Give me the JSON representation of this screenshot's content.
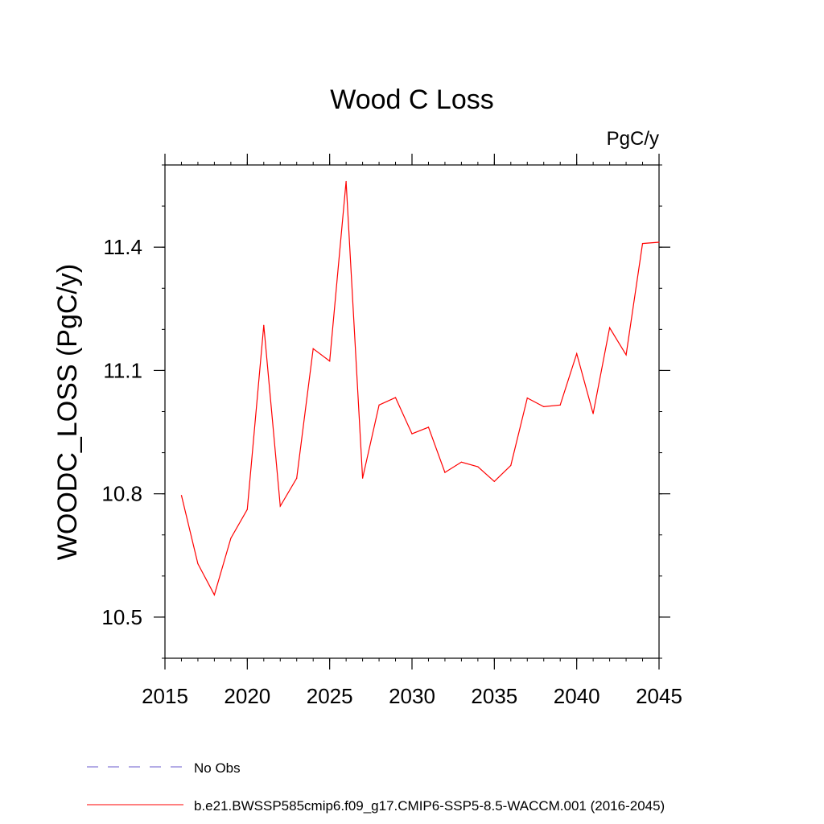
{
  "chart_data": {
    "type": "line",
    "title": "Wood C Loss",
    "units": "PgC/y",
    "xlabel": "",
    "ylabel": "WOODC_LOSS  (PgC/y)",
    "xlim": [
      2015,
      2045
    ],
    "ylim": [
      10.4,
      11.6
    ],
    "x_ticks": [
      2015,
      2020,
      2025,
      2030,
      2035,
      2040,
      2045
    ],
    "x_tick_labels": [
      "2015",
      "2020",
      "2025",
      "2030",
      "2035",
      "2040",
      "2045"
    ],
    "y_ticks": [
      10.5,
      10.8,
      11.1,
      11.4
    ],
    "y_tick_labels": [
      "10.5",
      "10.8",
      "11.1",
      "11.4"
    ],
    "y_minor_step": 0.1,
    "x_minor_step": 1,
    "grid": false,
    "legend_position": "bottom-left",
    "series": [
      {
        "name": "b.e21.BWSSP585cmip6.f09_g17.CMIP6-SSP5-8.5-WACCM.001 (2016-2045)",
        "color": "#ff0000",
        "style": "solid",
        "x": [
          2016,
          2017,
          2018,
          2019,
          2020,
          2021,
          2022,
          2023,
          2024,
          2025,
          2026,
          2027,
          2028,
          2029,
          2030,
          2031,
          2032,
          2033,
          2034,
          2035,
          2036,
          2037,
          2038,
          2039,
          2040,
          2041,
          2042,
          2043,
          2044,
          2045
        ],
        "values": [
          10.796,
          10.63,
          10.554,
          10.692,
          10.762,
          11.21,
          10.77,
          10.838,
          11.153,
          11.123,
          11.56,
          10.838,
          11.016,
          11.034,
          10.946,
          10.962,
          10.852,
          10.877,
          10.866,
          10.83,
          10.869,
          11.033,
          11.012,
          11.016,
          11.141,
          10.995,
          11.204,
          11.138,
          11.409,
          11.412
        ]
      }
    ],
    "legend": [
      {
        "label": "No Obs",
        "color": "#6a5acd",
        "style": "dashed"
      },
      {
        "label": "b.e21.BWSSP585cmip6.f09_g17.CMIP6-SSP5-8.5-WACCM.001 (2016-2045)",
        "color": "#ff0000",
        "style": "solid"
      }
    ]
  }
}
